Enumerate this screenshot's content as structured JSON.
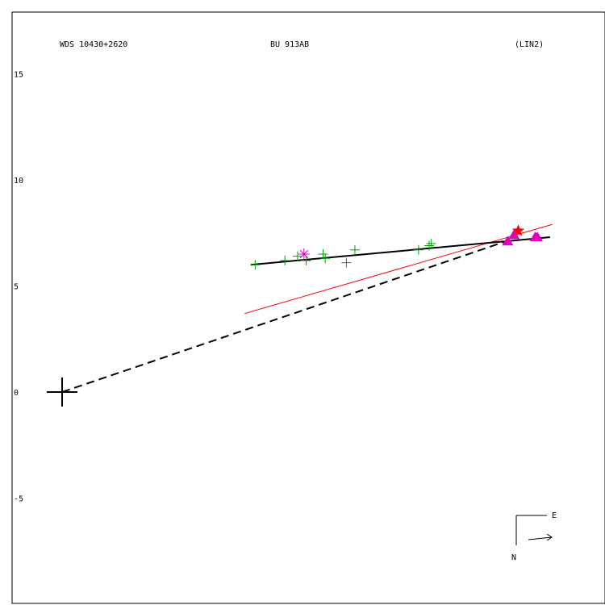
{
  "chart_data": {
    "type": "scatter",
    "title_left": "WDS 10430+2620",
    "title_center": "BU  913AB",
    "title_right": "(LIN2)",
    "xlabel": "",
    "ylabel": "",
    "grid": false,
    "y_ticks": [
      {
        "value": 15,
        "label": "15"
      },
      {
        "value": 10,
        "label": "10"
      },
      {
        "value": 5,
        "label": "5"
      },
      {
        "value": 0,
        "label": "0"
      },
      {
        "value": -5,
        "label": "-5"
      }
    ],
    "xlim": [
      -2.3,
      25.6
    ],
    "ylim": [
      -10,
      17.9
    ],
    "primary": {
      "x": 0,
      "y": 0
    },
    "series": [
      {
        "marker": "plus",
        "color": "#00a000",
        "points": [
          [
            9.1,
            6.0
          ],
          [
            10.5,
            6.2
          ],
          [
            11.1,
            6.4
          ],
          [
            11.5,
            6.2
          ],
          [
            12.3,
            6.5
          ],
          [
            12.4,
            6.3
          ],
          [
            13.4,
            6.1
          ],
          [
            13.8,
            6.7
          ],
          [
            16.8,
            6.7
          ],
          [
            17.3,
            6.9
          ],
          [
            17.4,
            7.0
          ]
        ]
      },
      {
        "marker": "asterisk",
        "color": "#d000d0",
        "points": [
          [
            11.4,
            6.5
          ]
        ]
      },
      {
        "marker": "triangle",
        "color": "#e000c0",
        "points": [
          [
            21.0,
            7.1
          ],
          [
            21.3,
            7.4
          ],
          [
            22.3,
            7.3
          ],
          [
            22.4,
            7.3
          ]
        ]
      },
      {
        "marker": "star",
        "color": "#ff0000",
        "points": [
          [
            21.5,
            7.6
          ]
        ]
      }
    ],
    "fit_line": {
      "color": "#000000",
      "points": [
        [
          8.9,
          6.0
        ],
        [
          23.0,
          7.3
        ]
      ]
    },
    "reference_line": {
      "color": "#ff0000",
      "points": [
        [
          8.6,
          3.7
        ],
        [
          23.1,
          7.9
        ]
      ]
    },
    "dashed_line": {
      "color": "#000000",
      "points": [
        [
          0,
          0
        ],
        [
          21.5,
          7.3
        ]
      ]
    },
    "compass": {
      "east": "E",
      "north": "N"
    }
  }
}
